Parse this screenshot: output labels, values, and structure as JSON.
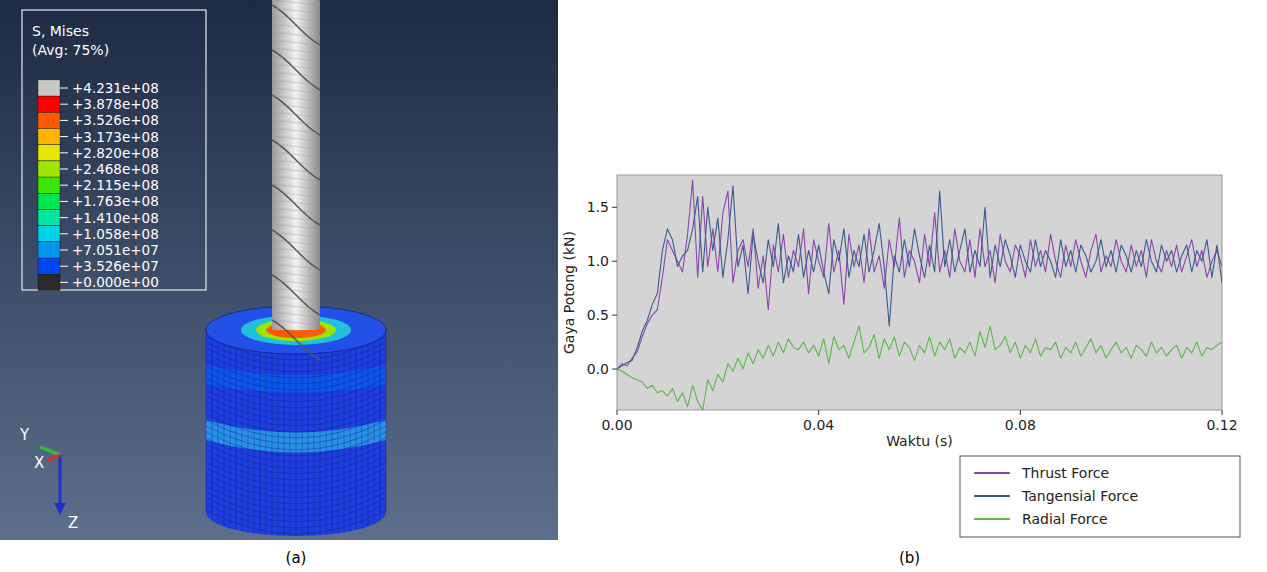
{
  "chart_data": [
    {
      "type": "contour",
      "title": "S, Mises",
      "subtitle": "(Avg: 75%)",
      "color_levels": [
        {
          "value": 423100000.0,
          "label": "+4.231e+08"
        },
        {
          "value": 387800000.0,
          "label": "+3.878e+08"
        },
        {
          "value": 352600000.0,
          "label": "+3.526e+08"
        },
        {
          "value": 317300000.0,
          "label": "+3.173e+08"
        },
        {
          "value": 282000000.0,
          "label": "+2.820e+08"
        },
        {
          "value": 246800000.0,
          "label": "+2.468e+08"
        },
        {
          "value": 211500000.0,
          "label": "+2.115e+08"
        },
        {
          "value": 176300000.0,
          "label": "+1.763e+08"
        },
        {
          "value": 141000000.0,
          "label": "+1.410e+08"
        },
        {
          "value": 105800000.0,
          "label": "+1.058e+08"
        },
        {
          "value": 70510000.0,
          "label": "+7.051e+07"
        },
        {
          "value": 35260000.0,
          "label": "+3.526e+07"
        },
        {
          "value": 0,
          "label": "+0.000e+00"
        }
      ],
      "colors": [
        "#c8c8c8",
        "#ff0000",
        "#ff5a00",
        "#ffb400",
        "#e6e600",
        "#a0e600",
        "#3ce600",
        "#00e650",
        "#00e6a0",
        "#00d2e6",
        "#0096f0",
        "#0046f0",
        "#2a2a2a"
      ],
      "axis_labels": [
        "Y",
        "X",
        "Z"
      ],
      "panel_label": "(a)"
    },
    {
      "type": "line",
      "xlabel": "Waktu (s)",
      "ylabel": "Gaya Potong (kN)",
      "panel_label": "(b)",
      "xlim": [
        0,
        0.12
      ],
      "ylim": [
        -0.38,
        1.8
      ],
      "xticks": [
        {
          "value": 0,
          "label": "0.00"
        },
        {
          "value": 0.04,
          "label": "0.04"
        },
        {
          "value": 0.08,
          "label": "0.08"
        },
        {
          "value": 0.12,
          "label": "0.12"
        }
      ],
      "yticks": [
        {
          "value": 0,
          "label": "0.0"
        },
        {
          "value": 0.5,
          "label": "0.5"
        },
        {
          "value": 1,
          "label": "1.0"
        },
        {
          "value": 1.5,
          "label": "1.5"
        }
      ],
      "grid": false,
      "legend": "bottom-right",
      "x": [
        0,
        0.001,
        0.002,
        0.003,
        0.004,
        0.005,
        0.006,
        0.007,
        0.008,
        0.009,
        0.01,
        0.011,
        0.012,
        0.013,
        0.014,
        0.015,
        0.016,
        0.017,
        0.018,
        0.019,
        0.02,
        0.021,
        0.022,
        0.023,
        0.024,
        0.025,
        0.026,
        0.027,
        0.028,
        0.029,
        0.03,
        0.031,
        0.032,
        0.033,
        0.034,
        0.035,
        0.036,
        0.037,
        0.038,
        0.039,
        0.04,
        0.041,
        0.042,
        0.043,
        0.044,
        0.045,
        0.046,
        0.047,
        0.048,
        0.049,
        0.05,
        0.051,
        0.052,
        0.053,
        0.054,
        0.055,
        0.056,
        0.057,
        0.058,
        0.059,
        0.06,
        0.061,
        0.062,
        0.063,
        0.064,
        0.065,
        0.066,
        0.067,
        0.068,
        0.069,
        0.07,
        0.071,
        0.072,
        0.073,
        0.074,
        0.075,
        0.076,
        0.077,
        0.078,
        0.079,
        0.08,
        0.081,
        0.082,
        0.083,
        0.084,
        0.085,
        0.086,
        0.087,
        0.088,
        0.089,
        0.09,
        0.091,
        0.092,
        0.093,
        0.094,
        0.095,
        0.096,
        0.097,
        0.098,
        0.099,
        0.1,
        0.101,
        0.102,
        0.103,
        0.104,
        0.105,
        0.106,
        0.107,
        0.108,
        0.109,
        0.11,
        0.111,
        0.112,
        0.113,
        0.114,
        0.115,
        0.116,
        0.117,
        0.118,
        0.119,
        0.12
      ],
      "series": [
        {
          "name": "Thrust Force",
          "color": "#8e44ad",
          "values": [
            0,
            0.05,
            0.03,
            0.1,
            0.16,
            0.3,
            0.42,
            0.5,
            0.55,
            0.85,
            1.2,
            1.1,
            1.0,
            0.9,
            1.25,
            1.75,
            0.85,
            1.6,
            0.95,
            1.3,
            0.9,
            1.45,
            1.65,
            0.8,
            1.1,
            1.2,
            0.95,
            1.3,
            0.75,
            1.05,
            0.55,
            1.15,
            0.9,
            1.25,
            0.85,
            1.1,
            0.95,
            1.3,
            0.7,
            1.2,
            1.0,
            0.85,
            1.35,
            0.9,
            1.1,
            0.6,
            1.25,
            0.95,
            1.15,
            0.8,
            1.3,
            0.9,
            1.05,
            0.75,
            1.2,
            0.95,
            1.4,
            0.85,
            1.1,
            1.0,
            0.8,
            1.25,
            0.95,
            1.45,
            0.9,
            1.1,
            0.85,
            1.3,
            1.0,
            0.9,
            1.2,
            0.85,
            1.3,
            0.95,
            1.1,
            0.8,
            1.25,
            1.0,
            0.9,
            1.15,
            1.05,
            0.85,
            1.2,
            0.95,
            1.1,
            0.9,
            1.25,
            1.0,
            0.85,
            1.15,
            0.95,
            1.2,
            1.0,
            0.85,
            1.1,
            1.25,
            0.9,
            1.05,
            0.95,
            1.2,
            1.0,
            0.9,
            1.15,
            0.95,
            1.1,
            0.85,
            1.2,
            1.0,
            0.9,
            1.1,
            0.95,
            1.15,
            0.9,
            1.05,
            1.2,
            0.95,
            1.1,
            0.85,
            1.0,
            1.1,
            0.95
          ]
        },
        {
          "name": "Tangensial Force",
          "color": "#3b5b8f",
          "values": [
            0,
            0.03,
            0.06,
            0.08,
            0.2,
            0.35,
            0.45,
            0.6,
            0.7,
            1.1,
            1.3,
            1.2,
            0.95,
            1.05,
            1.1,
            1.3,
            1.6,
            0.9,
            1.5,
            1.1,
            1.4,
            0.85,
            1.2,
            1.7,
            0.95,
            1.15,
            0.7,
            1.25,
            1.0,
            0.8,
            1.2,
            0.95,
            1.35,
            0.8,
            1.05,
            0.9,
            1.25,
            0.85,
            1.1,
            0.9,
            1.15,
            0.9,
            0.7,
            1.2,
            1.0,
            1.3,
            0.85,
            1.1,
            0.95,
            1.25,
            0.9,
            1.1,
            1.35,
            0.95,
            0.4,
            1.05,
            0.9,
            1.2,
            0.95,
            1.3,
            1.05,
            0.85,
            1.15,
            0.9,
            1.65,
            0.95,
            1.2,
            0.9,
            1.1,
            1.3,
            0.9,
            1.1,
            0.95,
            1.5,
            0.85,
            1.15,
            0.95,
            1.2,
            1.05,
            0.85,
            1.15,
            1.0,
            0.9,
            1.2,
            0.95,
            1.1,
            1.0,
            0.85,
            1.2,
            0.95,
            1.1,
            0.9,
            1.15,
            1.05,
            0.9,
            1.0,
            1.2,
            0.95,
            1.1,
            0.9,
            1.15,
            1.05,
            0.9,
            1.1,
            0.95,
            1.2,
            1.0,
            0.9,
            1.15,
            1.0,
            1.1,
            0.9,
            1.05,
            1.15,
            0.9,
            1.1,
            1.0,
            1.2,
            0.85,
            1.15,
            0.8
          ]
        },
        {
          "name": "Radial Force",
          "color": "#5cb84a",
          "values": [
            0,
            -0.02,
            -0.05,
            -0.08,
            -0.1,
            -0.12,
            -0.18,
            -0.15,
            -0.22,
            -0.2,
            -0.25,
            -0.18,
            -0.3,
            -0.22,
            -0.35,
            -0.15,
            -0.3,
            -0.38,
            -0.1,
            -0.2,
            -0.05,
            -0.12,
            0.05,
            -0.02,
            0.1,
            0.0,
            0.15,
            0.05,
            0.18,
            0.1,
            0.22,
            0.12,
            0.25,
            0.15,
            0.28,
            0.2,
            0.18,
            0.25,
            0.15,
            0.22,
            0.12,
            0.28,
            0.05,
            0.3,
            0.18,
            0.22,
            0.1,
            0.25,
            0.4,
            0.15,
            0.2,
            0.32,
            0.1,
            0.28,
            0.18,
            0.3,
            0.12,
            0.25,
            0.2,
            0.08,
            0.22,
            0.15,
            0.3,
            0.12,
            0.25,
            0.18,
            0.28,
            0.1,
            0.2,
            0.15,
            0.25,
            0.12,
            0.35,
            0.2,
            0.4,
            0.18,
            0.22,
            0.3,
            0.15,
            0.25,
            0.1,
            0.22,
            0.15,
            0.28,
            0.12,
            0.2,
            0.18,
            0.25,
            0.1,
            0.2,
            0.15,
            0.25,
            0.12,
            0.2,
            0.28,
            0.15,
            0.22,
            0.1,
            0.18,
            0.25,
            0.15,
            0.2,
            0.1,
            0.22,
            0.18,
            0.12,
            0.25,
            0.15,
            0.2,
            0.12,
            0.18,
            0.22,
            0.1,
            0.2,
            0.15,
            0.25,
            0.12,
            0.2,
            0.18,
            0.22,
            0.25
          ]
        }
      ]
    }
  ]
}
